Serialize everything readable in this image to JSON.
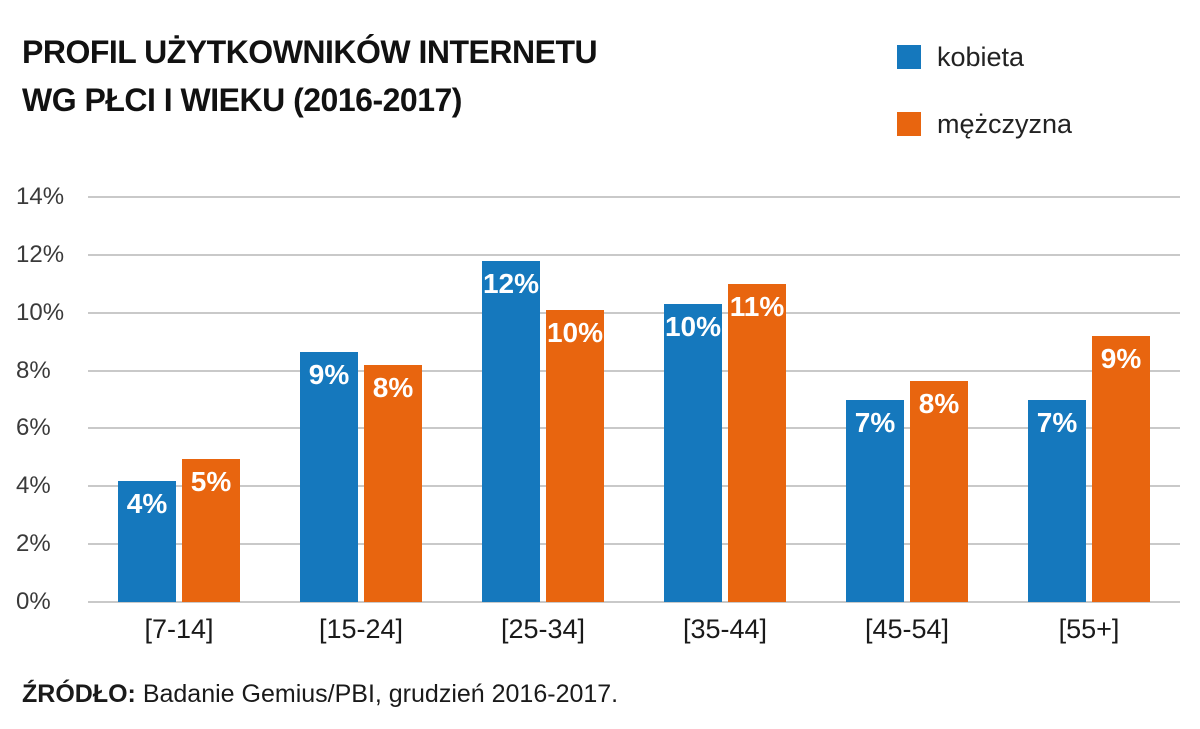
{
  "title": {
    "line1": "PROFIL UŻYTKOWNIKÓW INTERNETU",
    "line2": "WG PŁCI I WIEKU (2016-2017)"
  },
  "legend": {
    "items": [
      {
        "label": "kobieta",
        "color": "#1578bd"
      },
      {
        "label": "mężczyzna",
        "color": "#e8650f"
      }
    ]
  },
  "source": {
    "label": "ŹRÓDŁO:",
    "text": " Badanie Gemius/PBI, grudzień 2016-2017."
  },
  "chart_data": {
    "type": "bar",
    "title": "PROFIL UŻYTKOWNIKÓW INTERNETU WG PŁCI I WIEKU (2016-2017)",
    "categories": [
      "[7-14]",
      "[15-24]",
      "[25-34]",
      "[35-44]",
      "[45-54]",
      "[55+]"
    ],
    "series": [
      {
        "name": "kobieta",
        "color": "#1578bd",
        "values": [
          4.2,
          8.65,
          11.8,
          10.3,
          7.0,
          7.0
        ],
        "labels": [
          "4%",
          "9%",
          "12%",
          "10%",
          "7%",
          "7%"
        ]
      },
      {
        "name": "mężczyzna",
        "color": "#e8650f",
        "values": [
          4.95,
          8.2,
          10.1,
          11.0,
          7.65,
          9.2
        ],
        "labels": [
          "5%",
          "8%",
          "10%",
          "11%",
          "8%",
          "9%"
        ]
      }
    ],
    "y_ticks": [
      "0%",
      "2%",
      "4%",
      "6%",
      "8%",
      "10%",
      "12%",
      "14%"
    ],
    "ylim": [
      0,
      14
    ],
    "xlabel": "",
    "ylabel": "",
    "grid": true,
    "legend_position": "top-right"
  }
}
